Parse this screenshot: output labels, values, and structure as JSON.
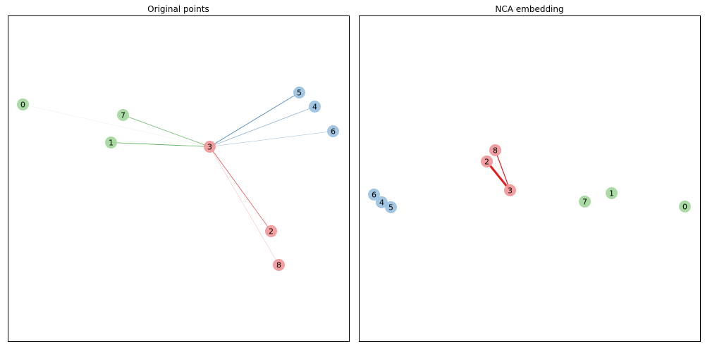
{
  "chart_data": [
    {
      "type": "scatter",
      "title": "Original points",
      "xlim": [
        0,
        484
      ],
      "ylim": [
        0,
        463
      ],
      "grid": false,
      "colors": {
        "0": "#a6d9a0",
        "1": "#9ec3e0",
        "2": "#f2999b"
      },
      "edge_colors": {
        "0": "#4aa843",
        "1": "#3d7fb8",
        "2": "#e41a1c"
      },
      "points": [
        {
          "label": "0",
          "x": 21,
          "y": 337,
          "cls": 0
        },
        {
          "label": "1",
          "x": 146,
          "y": 283,
          "cls": 0
        },
        {
          "label": "2",
          "x": 373,
          "y": 157,
          "cls": 2
        },
        {
          "label": "3",
          "x": 286,
          "y": 277,
          "cls": 2
        },
        {
          "label": "4",
          "x": 435,
          "y": 334,
          "cls": 1
        },
        {
          "label": "5",
          "x": 413,
          "y": 354,
          "cls": 1
        },
        {
          "label": "6",
          "x": 461,
          "y": 299,
          "cls": 1
        },
        {
          "label": "7",
          "x": 163,
          "y": 322,
          "cls": 0
        },
        {
          "label": "8",
          "x": 384,
          "y": 109,
          "cls": 2
        }
      ],
      "edges": [
        {
          "from": 3,
          "to": 0,
          "weight": 0.05
        },
        {
          "from": 3,
          "to": 1,
          "weight": 0.8
        },
        {
          "from": 3,
          "to": 7,
          "weight": 0.7
        },
        {
          "from": 3,
          "to": 5,
          "weight": 0.8
        },
        {
          "from": 3,
          "to": 4,
          "weight": 0.65
        },
        {
          "from": 3,
          "to": 6,
          "weight": 0.45
        },
        {
          "from": 3,
          "to": 2,
          "weight": 0.7
        },
        {
          "from": 3,
          "to": 8,
          "weight": 0.3
        }
      ]
    },
    {
      "type": "scatter",
      "title": "NCA embedding",
      "xlim": [
        0,
        484
      ],
      "ylim": [
        0,
        463
      ],
      "grid": false,
      "colors": {
        "0": "#a6d9a0",
        "1": "#9ec3e0",
        "2": "#f2999b"
      },
      "edge_colors": {
        "0": "#4aa843",
        "1": "#3d7fb8",
        "2": "#e41a1c"
      },
      "points": [
        {
          "label": "0",
          "x": 462,
          "y": 192,
          "cls": 0
        },
        {
          "label": "1",
          "x": 358,
          "y": 211,
          "cls": 0
        },
        {
          "label": "2",
          "x": 181,
          "y": 256,
          "cls": 2
        },
        {
          "label": "3",
          "x": 214,
          "y": 215,
          "cls": 2
        },
        {
          "label": "4",
          "x": 32,
          "y": 198,
          "cls": 1
        },
        {
          "label": "5",
          "x": 45,
          "y": 191,
          "cls": 1
        },
        {
          "label": "6",
          "x": 21,
          "y": 209,
          "cls": 1
        },
        {
          "label": "7",
          "x": 320,
          "y": 199,
          "cls": 0
        },
        {
          "label": "8",
          "x": 193,
          "y": 272,
          "cls": 2
        }
      ],
      "edges": [
        {
          "from": 3,
          "to": 2,
          "weight": 3.0
        },
        {
          "from": 3,
          "to": 8,
          "weight": 1.2
        }
      ]
    }
  ]
}
